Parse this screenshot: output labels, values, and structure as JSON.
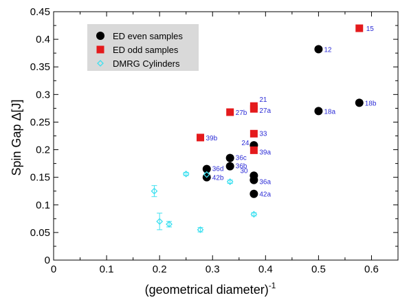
{
  "chart_data": {
    "type": "scatter",
    "xlabel": "(geometrical diameter)",
    "xlabel_sup": "-1",
    "ylabel": "Spin Gap Δ[J]",
    "xlim": [
      0,
      0.65
    ],
    "ylim": [
      0,
      0.45
    ],
    "xticks": [
      "0",
      "0.1",
      "0.2",
      "0.3",
      "0.4",
      "0.5",
      "0.6"
    ],
    "yticks": [
      "0",
      "0.05",
      "0.1",
      "0.15",
      "0.2",
      "0.25",
      "0.3",
      "0.35",
      "0.4",
      "0.45"
    ],
    "legend_position": "top-left",
    "label_color": "#2b2bd6",
    "series": [
      {
        "name": "ED even samples",
        "marker": "circle",
        "color": "#000000",
        "points": [
          {
            "x": 0.5,
            "y": 0.382,
            "label": "12"
          },
          {
            "x": 0.577,
            "y": 0.285,
            "label": "18b"
          },
          {
            "x": 0.5,
            "y": 0.27,
            "label": "18a"
          },
          {
            "x": 0.378,
            "y": 0.208,
            "label": "24"
          },
          {
            "x": 0.333,
            "y": 0.185,
            "label": "36c"
          },
          {
            "x": 0.333,
            "y": 0.17,
            "label": "36b"
          },
          {
            "x": 0.289,
            "y": 0.165,
            "label": "36d"
          },
          {
            "x": 0.289,
            "y": 0.15,
            "label": "42b"
          },
          {
            "x": 0.378,
            "y": 0.153,
            "label": "30"
          },
          {
            "x": 0.378,
            "y": 0.145,
            "label": "36a"
          },
          {
            "x": 0.378,
            "y": 0.12,
            "label": "42a"
          }
        ]
      },
      {
        "name": "ED odd samples",
        "marker": "square",
        "color": "#e41a1c",
        "points": [
          {
            "x": 0.577,
            "y": 0.42,
            "label": "15"
          },
          {
            "x": 0.378,
            "y": 0.279,
            "label": "21"
          },
          {
            "x": 0.378,
            "y": 0.274,
            "label": "27a"
          },
          {
            "x": 0.333,
            "y": 0.268,
            "label": "27b"
          },
          {
            "x": 0.378,
            "y": 0.229,
            "label": "33"
          },
          {
            "x": 0.378,
            "y": 0.199,
            "label": "39a"
          },
          {
            "x": 0.277,
            "y": 0.222,
            "label": "39b"
          }
        ]
      },
      {
        "name": "DMRG Cylinders",
        "marker": "diamond",
        "color": "#3ee0f0",
        "points": [
          {
            "x": 0.19,
            "y": 0.125,
            "err": 0.01
          },
          {
            "x": 0.2,
            "y": 0.07,
            "err": 0.015
          },
          {
            "x": 0.218,
            "y": 0.065,
            "err": 0.005
          },
          {
            "x": 0.25,
            "y": 0.156,
            "err": 0.003
          },
          {
            "x": 0.277,
            "y": 0.055,
            "err": 0.004
          },
          {
            "x": 0.289,
            "y": 0.155,
            "err": 0.003
          },
          {
            "x": 0.333,
            "y": 0.142,
            "err": 0.003
          },
          {
            "x": 0.378,
            "y": 0.083,
            "err": 0.003
          }
        ]
      }
    ]
  }
}
